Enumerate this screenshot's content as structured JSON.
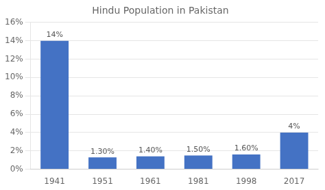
{
  "chart_data": {
    "type": "bar",
    "title": "Hindu Population in Pakistan",
    "categories": [
      "1941",
      "1951",
      "1961",
      "1981",
      "1998",
      "2017"
    ],
    "values": [
      14,
      1.3,
      1.4,
      1.5,
      1.6,
      4
    ],
    "value_labels": [
      "14%",
      "1.30%",
      "1.40%",
      "1.50%",
      "1.60%",
      "4%"
    ],
    "data_labels": true,
    "color": "#4472C4",
    "ylim": [
      0,
      16
    ],
    "yticks": [
      {
        "value": 0,
        "label": "0%"
      },
      {
        "value": 2,
        "label": "2%"
      },
      {
        "value": 4,
        "label": "4%"
      },
      {
        "value": 6,
        "label": "6%"
      },
      {
        "value": 8,
        "label": "8%"
      },
      {
        "value": 10,
        "label": "10%"
      },
      {
        "value": 12,
        "label": "12%"
      },
      {
        "value": 14,
        "label": "14%"
      },
      {
        "value": 16,
        "label": "16%"
      }
    ],
    "grid": true
  }
}
